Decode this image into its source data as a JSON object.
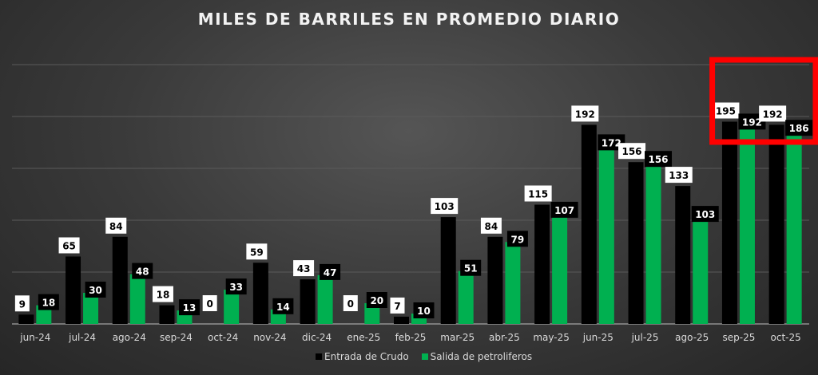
{
  "chart_data": {
    "type": "bar",
    "title": "MILES DE BARRILES EN PROMEDIO DIARIO",
    "categories": [
      "jun-24",
      "jul-24",
      "ago-24",
      "sep-24",
      "oct-24",
      "nov-24",
      "dic-24",
      "ene-25",
      "feb-25",
      "mar-25",
      "abr-25",
      "may-25",
      "jun-25",
      "jul-25",
      "ago-25",
      "sep-25",
      "oct-25"
    ],
    "series": [
      {
        "name": "Entrada de Crudo",
        "color": "#000000",
        "values": [
          9,
          65,
          84,
          18,
          0,
          59,
          43,
          0,
          7,
          103,
          84,
          115,
          192,
          156,
          133,
          195,
          192
        ]
      },
      {
        "name": "Salida de petroliferos",
        "color": "#00b050",
        "values": [
          18,
          30,
          48,
          13,
          33,
          14,
          47,
          20,
          10,
          51,
          79,
          107,
          172,
          156,
          103,
          192,
          186
        ]
      }
    ],
    "ylim": [
      0,
      250
    ],
    "grid": true,
    "legend": "bottom",
    "highlight": {
      "color": "#ff0000",
      "categories": [
        "sep-25",
        "oct-25"
      ]
    }
  }
}
